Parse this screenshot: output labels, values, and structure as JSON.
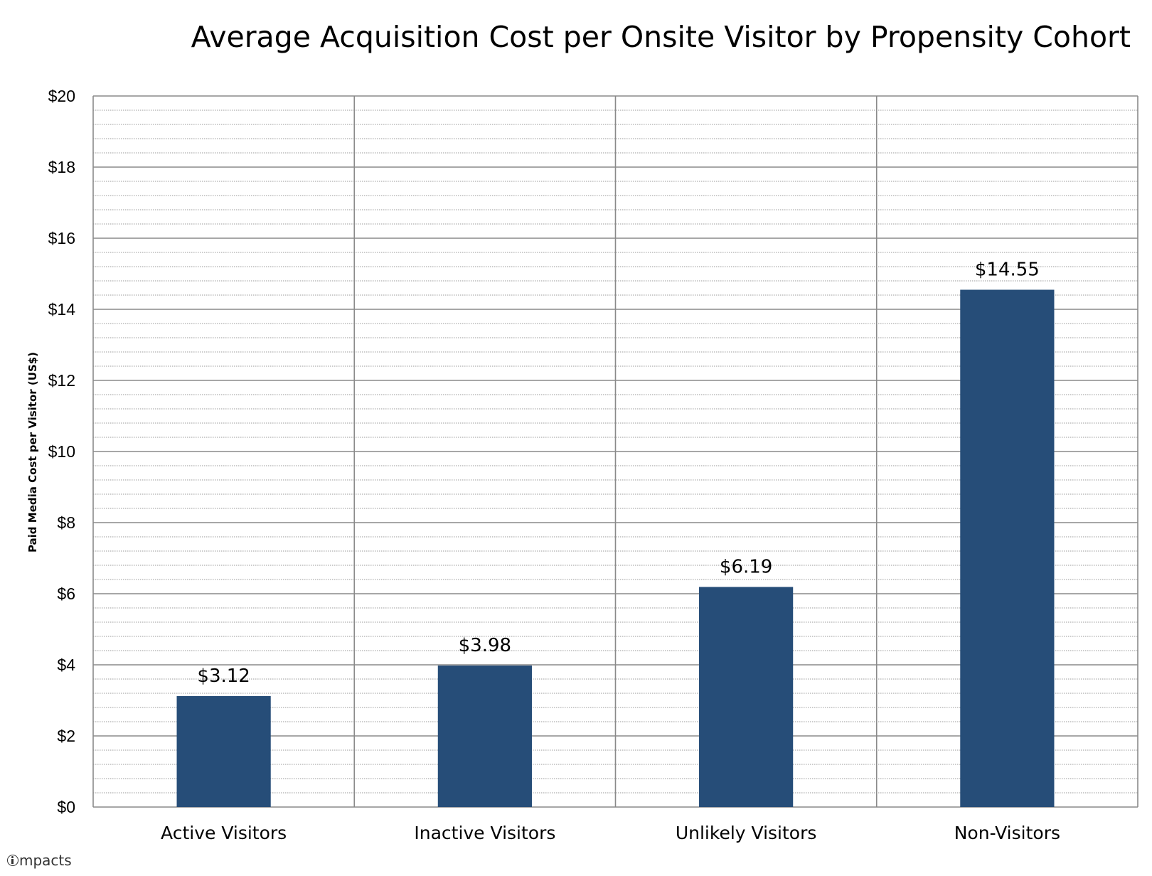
{
  "chart_data": {
    "type": "bar",
    "title": "Average Acquisition Cost per Onsite Visitor by Propensity Cohort",
    "xlabel": "",
    "ylabel": "Paid Media Cost per Visitor (US$)",
    "categories": [
      "Active Visitors",
      "Inactive Visitors",
      "Unlikely Visitors",
      "Non-Visitors"
    ],
    "values": [
      3.12,
      3.98,
      6.19,
      14.55
    ],
    "data_labels": [
      "$3.12",
      "$3.98",
      "$6.19",
      "$14.55"
    ],
    "ylim": [
      0,
      20
    ],
    "y_ticks": [
      0,
      2,
      4,
      6,
      8,
      10,
      12,
      14,
      16,
      18,
      20
    ],
    "y_tick_labels": [
      "$0",
      "$2",
      "$4",
      "$6",
      "$8",
      "$10",
      "$12",
      "$14",
      "$16",
      "$18",
      "$20"
    ],
    "minor_tick_step": 0.4,
    "grid": true,
    "bar_color": "#264d78"
  },
  "brand": {
    "name": "mpacts"
  }
}
